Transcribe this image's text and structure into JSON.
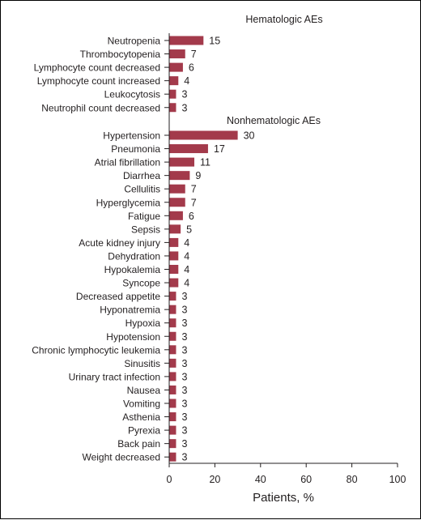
{
  "chart_data": {
    "type": "bar",
    "orientation": "horizontal",
    "bar_color": "#a33a4b",
    "xlabel": "Patients, %",
    "xlim": [
      0,
      100
    ],
    "xticks": [
      "0",
      "20",
      "40",
      "60",
      "80",
      "100"
    ],
    "groups": [
      {
        "title": "Hematologic AEs",
        "categories": [
          "Neutropenia",
          "Thrombocytopenia",
          "Lymphocyte count decreased",
          "Lymphocyte count increased",
          "Leukocytosis",
          "Neutrophil count decreased"
        ],
        "values": [
          15,
          7,
          6,
          4,
          3,
          3
        ]
      },
      {
        "title": "Nonhematologic AEs",
        "categories": [
          "Hypertension",
          "Pneumonia",
          "Atrial fibrillation",
          "Diarrhea",
          "Cellulitis",
          "Hyperglycemia",
          "Fatigue",
          "Sepsis",
          "Acute kidney injury",
          "Dehydration",
          "Hypokalemia",
          "Syncope",
          "Decreased appetite",
          "Hyponatremia",
          "Hypoxia",
          "Hypotension",
          "Chronic lymphocytic leukemia",
          "Sinusitis",
          "Urinary tract infection",
          "Nausea",
          "Vomiting",
          "Asthenia",
          "Pyrexia",
          "Back pain",
          "Weight decreased"
        ],
        "values": [
          30,
          17,
          11,
          9,
          7,
          7,
          6,
          5,
          4,
          4,
          4,
          4,
          3,
          3,
          3,
          3,
          3,
          3,
          3,
          3,
          3,
          3,
          3,
          3,
          3
        ]
      }
    ]
  }
}
